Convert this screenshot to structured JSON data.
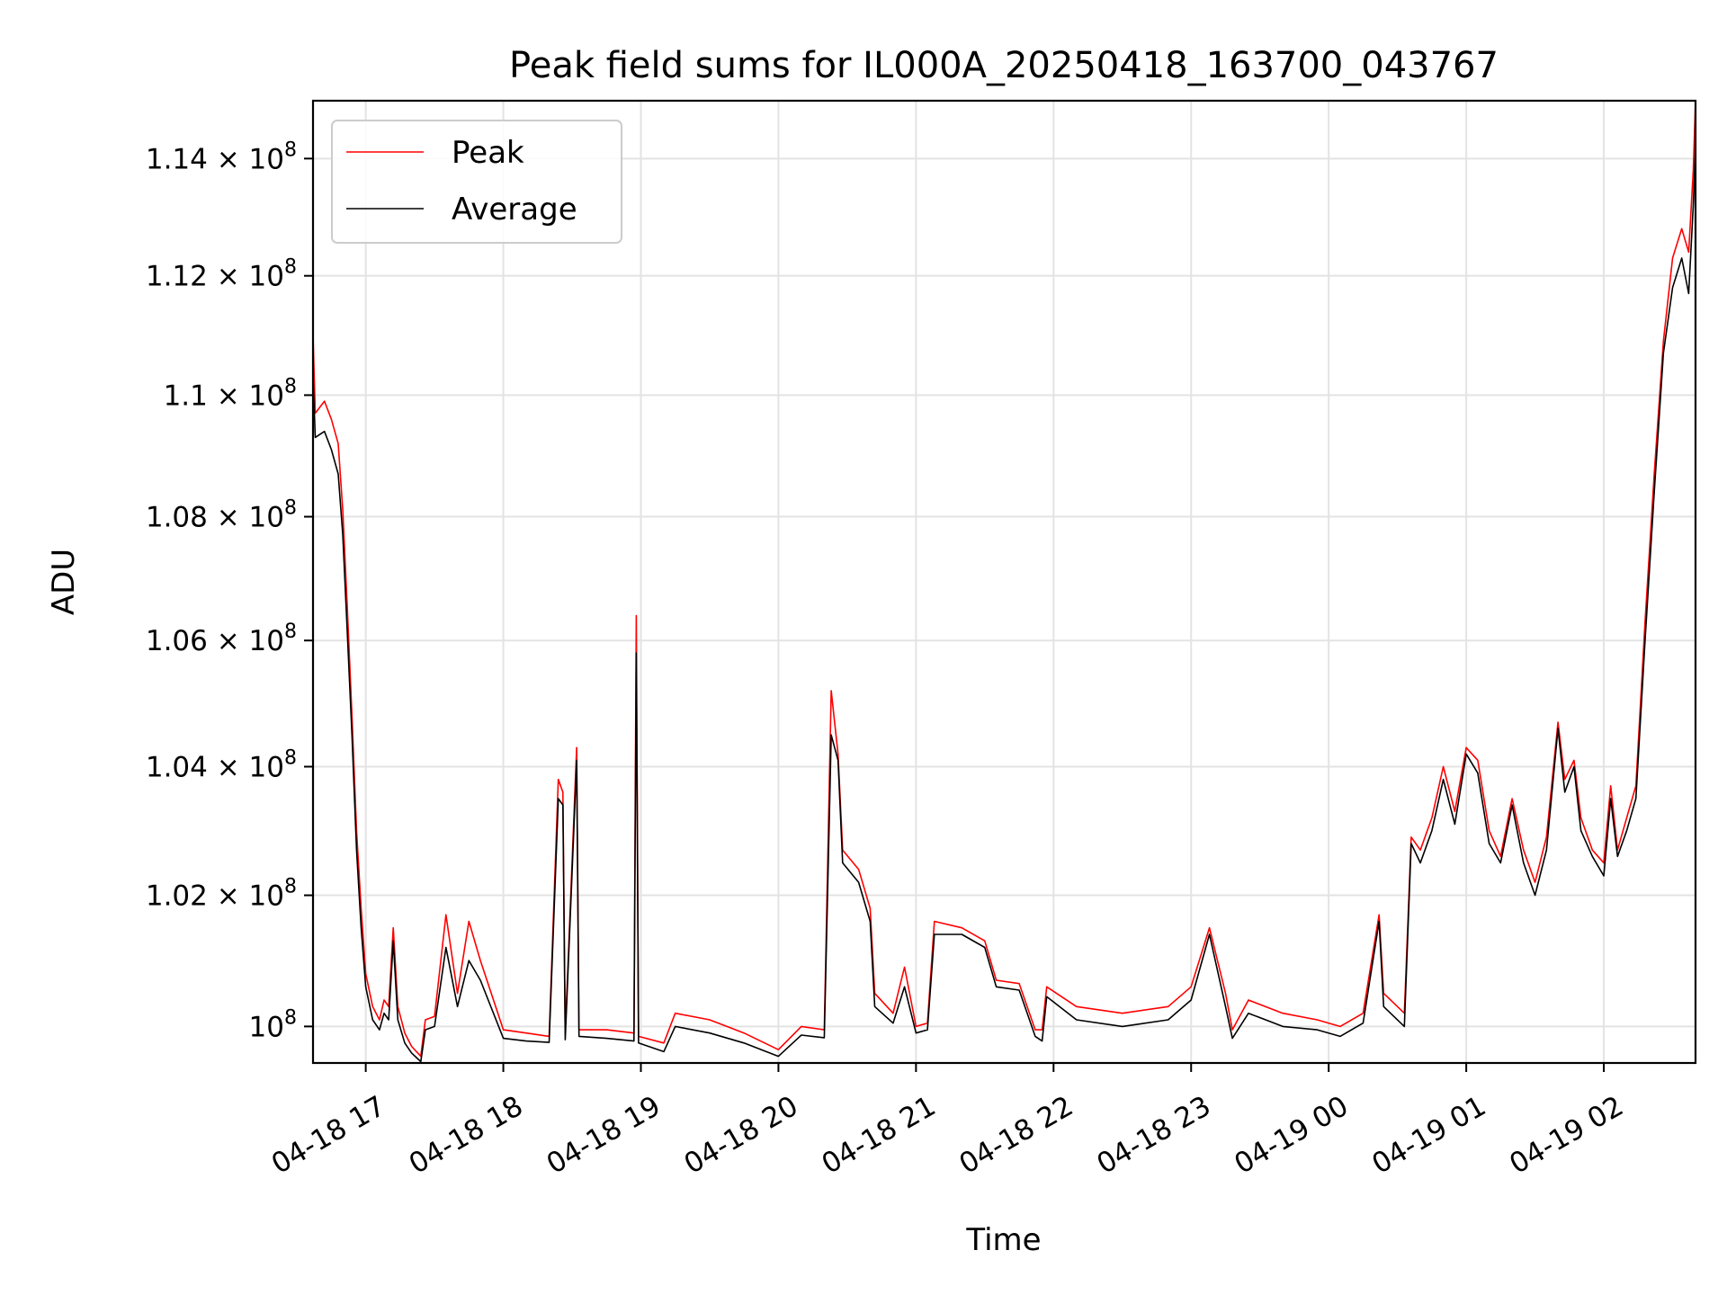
{
  "chart_data": {
    "type": "line",
    "title": "Peak field sums for IL000A_20250418_163700_043767",
    "xlabel": "Time",
    "ylabel": "ADU",
    "y_scale": "log",
    "xlim": [
      "2025-04-18 16:37",
      "2025-04-19 02:40"
    ],
    "ylim": [
      99450000,
      115000000
    ],
    "x_ticks": [
      {
        "t": "2025-04-18 17:00",
        "label": "04-18 17"
      },
      {
        "t": "2025-04-18 18:00",
        "label": "04-18 18"
      },
      {
        "t": "2025-04-18 19:00",
        "label": "04-18 19"
      },
      {
        "t": "2025-04-18 20:00",
        "label": "04-18 20"
      },
      {
        "t": "2025-04-18 21:00",
        "label": "04-18 21"
      },
      {
        "t": "2025-04-18 22:00",
        "label": "04-18 22"
      },
      {
        "t": "2025-04-18 23:00",
        "label": "04-18 23"
      },
      {
        "t": "2025-04-19 00:00",
        "label": "04-19 00"
      },
      {
        "t": "2025-04-19 01:00",
        "label": "04-19 01"
      },
      {
        "t": "2025-04-19 02:00",
        "label": "04-19 02"
      }
    ],
    "y_ticks": [
      {
        "value": 100000000,
        "mant": "",
        "exp": "8"
      },
      {
        "value": 102000000,
        "mant": "1.02",
        "exp": "8"
      },
      {
        "value": 104000000,
        "mant": "1.04",
        "exp": "8"
      },
      {
        "value": 106000000,
        "mant": "1.06",
        "exp": "8"
      },
      {
        "value": 108000000,
        "mant": "1.08",
        "exp": "8"
      },
      {
        "value": 110000000,
        "mant": "1.1",
        "exp": "8"
      },
      {
        "value": 112000000,
        "mant": "1.12",
        "exp": "8"
      },
      {
        "value": 114000000,
        "mant": "1.14",
        "exp": "8"
      }
    ],
    "grid": true,
    "legend_position": "top-left",
    "series": [
      {
        "name": "Peak",
        "color": "#ff0000",
        "points": [
          [
            "2025-04-18 16:37",
            111000000
          ],
          [
            "2025-04-18 16:38",
            109700000
          ],
          [
            "2025-04-18 16:42",
            109900000
          ],
          [
            "2025-04-18 16:45",
            109600000
          ],
          [
            "2025-04-18 16:48",
            109200000
          ],
          [
            "2025-04-18 16:50",
            108100000
          ],
          [
            "2025-04-18 16:52",
            106500000
          ],
          [
            "2025-04-18 16:54",
            104800000
          ],
          [
            "2025-04-18 16:56",
            103000000
          ],
          [
            "2025-04-18 16:58",
            101800000
          ],
          [
            "2025-04-18 17:00",
            100800000
          ],
          [
            "2025-04-18 17:03",
            100300000
          ],
          [
            "2025-04-18 17:06",
            100100000
          ],
          [
            "2025-04-18 17:08",
            100400000
          ],
          [
            "2025-04-18 17:10",
            100300000
          ],
          [
            "2025-04-18 17:12",
            101500000
          ],
          [
            "2025-04-18 17:14",
            100300000
          ],
          [
            "2025-04-18 17:17",
            99900000
          ],
          [
            "2025-04-18 17:20",
            99700000
          ],
          [
            "2025-04-18 17:24",
            99550000
          ],
          [
            "2025-04-18 17:26",
            100100000
          ],
          [
            "2025-04-18 17:30",
            100150000
          ],
          [
            "2025-04-18 17:35",
            101700000
          ],
          [
            "2025-04-18 17:40",
            100500000
          ],
          [
            "2025-04-18 17:45",
            101600000
          ],
          [
            "2025-04-18 17:50",
            101000000
          ],
          [
            "2025-04-18 18:00",
            99950000
          ],
          [
            "2025-04-18 18:10",
            99900000
          ],
          [
            "2025-04-18 18:20",
            99850000
          ],
          [
            "2025-04-18 18:24",
            103800000
          ],
          [
            "2025-04-18 18:26",
            103600000
          ],
          [
            "2025-04-18 18:27",
            99900000
          ],
          [
            "2025-04-18 18:32",
            104300000
          ],
          [
            "2025-04-18 18:33",
            99950000
          ],
          [
            "2025-04-18 18:45",
            99950000
          ],
          [
            "2025-04-18 18:57",
            99900000
          ],
          [
            "2025-04-18 18:58",
            106400000
          ],
          [
            "2025-04-18 18:59",
            99850000
          ],
          [
            "2025-04-18 19:10",
            99750000
          ],
          [
            "2025-04-18 19:15",
            100200000
          ],
          [
            "2025-04-18 19:30",
            100100000
          ],
          [
            "2025-04-18 19:45",
            99900000
          ],
          [
            "2025-04-18 20:00",
            99650000
          ],
          [
            "2025-04-18 20:10",
            100000000
          ],
          [
            "2025-04-18 20:20",
            99950000
          ],
          [
            "2025-04-18 20:23",
            105200000
          ],
          [
            "2025-04-18 20:26",
            104200000
          ],
          [
            "2025-04-18 20:28",
            102700000
          ],
          [
            "2025-04-18 20:35",
            102400000
          ],
          [
            "2025-04-18 20:40",
            101800000
          ],
          [
            "2025-04-18 20:42",
            100500000
          ],
          [
            "2025-04-18 20:50",
            100200000
          ],
          [
            "2025-04-18 20:55",
            100900000
          ],
          [
            "2025-04-18 21:00",
            100000000
          ],
          [
            "2025-04-18 21:05",
            100050000
          ],
          [
            "2025-04-18 21:08",
            101600000
          ],
          [
            "2025-04-18 21:20",
            101500000
          ],
          [
            "2025-04-18 21:30",
            101300000
          ],
          [
            "2025-04-18 21:35",
            100700000
          ],
          [
            "2025-04-18 21:45",
            100650000
          ],
          [
            "2025-04-18 21:52",
            99950000
          ],
          [
            "2025-04-18 21:55",
            99950000
          ],
          [
            "2025-04-18 21:57",
            100600000
          ],
          [
            "2025-04-18 22:10",
            100300000
          ],
          [
            "2025-04-18 22:30",
            100200000
          ],
          [
            "2025-04-18 22:50",
            100300000
          ],
          [
            "2025-04-18 23:00",
            100600000
          ],
          [
            "2025-04-18 23:08",
            101500000
          ],
          [
            "2025-04-18 23:15",
            100500000
          ],
          [
            "2025-04-18 23:18",
            99950000
          ],
          [
            "2025-04-18 23:25",
            100400000
          ],
          [
            "2025-04-18 23:40",
            100200000
          ],
          [
            "2025-04-18 23:55",
            100100000
          ],
          [
            "2025-04-19 00:05",
            100000000
          ],
          [
            "2025-04-19 00:15",
            100200000
          ],
          [
            "2025-04-19 00:22",
            101700000
          ],
          [
            "2025-04-19 00:24",
            100500000
          ],
          [
            "2025-04-19 00:33",
            100200000
          ],
          [
            "2025-04-19 00:36",
            102900000
          ],
          [
            "2025-04-19 00:40",
            102700000
          ],
          [
            "2025-04-19 00:45",
            103200000
          ],
          [
            "2025-04-19 00:50",
            104000000
          ],
          [
            "2025-04-19 00:55",
            103300000
          ],
          [
            "2025-04-19 01:00",
            104300000
          ],
          [
            "2025-04-19 01:05",
            104100000
          ],
          [
            "2025-04-19 01:10",
            103000000
          ],
          [
            "2025-04-19 01:15",
            102600000
          ],
          [
            "2025-04-19 01:20",
            103500000
          ],
          [
            "2025-04-19 01:25",
            102700000
          ],
          [
            "2025-04-19 01:30",
            102200000
          ],
          [
            "2025-04-19 01:35",
            102900000
          ],
          [
            "2025-04-19 01:40",
            104700000
          ],
          [
            "2025-04-19 01:43",
            103800000
          ],
          [
            "2025-04-19 01:47",
            104100000
          ],
          [
            "2025-04-19 01:50",
            103200000
          ],
          [
            "2025-04-19 01:55",
            102700000
          ],
          [
            "2025-04-19 02:00",
            102500000
          ],
          [
            "2025-04-19 02:03",
            103700000
          ],
          [
            "2025-04-19 02:06",
            102700000
          ],
          [
            "2025-04-19 02:10",
            103200000
          ],
          [
            "2025-04-19 02:14",
            103700000
          ],
          [
            "2025-04-19 02:18",
            106300000
          ],
          [
            "2025-04-19 02:22",
            108700000
          ],
          [
            "2025-04-19 02:26",
            110900000
          ],
          [
            "2025-04-19 02:30",
            112300000
          ],
          [
            "2025-04-19 02:34",
            112800000
          ],
          [
            "2025-04-19 02:37",
            112400000
          ],
          [
            "2025-04-19 02:39",
            113800000
          ],
          [
            "2025-04-19 02:40",
            115000000
          ]
        ]
      },
      {
        "name": "Average",
        "color": "#000000",
        "points": [
          [
            "2025-04-18 16:37",
            110300000
          ],
          [
            "2025-04-18 16:38",
            109300000
          ],
          [
            "2025-04-18 16:42",
            109400000
          ],
          [
            "2025-04-18 16:45",
            109100000
          ],
          [
            "2025-04-18 16:48",
            108700000
          ],
          [
            "2025-04-18 16:50",
            107700000
          ],
          [
            "2025-04-18 16:52",
            106100000
          ],
          [
            "2025-04-18 16:54",
            104500000
          ],
          [
            "2025-04-18 16:56",
            102700000
          ],
          [
            "2025-04-18 16:58",
            101500000
          ],
          [
            "2025-04-18 17:00",
            100600000
          ],
          [
            "2025-04-18 17:03",
            100100000
          ],
          [
            "2025-04-18 17:06",
            99950000
          ],
          [
            "2025-04-18 17:08",
            100200000
          ],
          [
            "2025-04-18 17:10",
            100100000
          ],
          [
            "2025-04-18 17:12",
            101300000
          ],
          [
            "2025-04-18 17:14",
            100100000
          ],
          [
            "2025-04-18 17:17",
            99750000
          ],
          [
            "2025-04-18 17:20",
            99600000
          ],
          [
            "2025-04-18 17:24",
            99470000
          ],
          [
            "2025-04-18 17:26",
            99950000
          ],
          [
            "2025-04-18 17:30",
            100000000
          ],
          [
            "2025-04-18 17:35",
            101200000
          ],
          [
            "2025-04-18 17:40",
            100300000
          ],
          [
            "2025-04-18 17:45",
            101000000
          ],
          [
            "2025-04-18 17:50",
            100700000
          ],
          [
            "2025-04-18 18:00",
            99820000
          ],
          [
            "2025-04-18 18:10",
            99780000
          ],
          [
            "2025-04-18 18:20",
            99760000
          ],
          [
            "2025-04-18 18:24",
            103500000
          ],
          [
            "2025-04-18 18:26",
            103400000
          ],
          [
            "2025-04-18 18:27",
            99800000
          ],
          [
            "2025-04-18 18:32",
            104100000
          ],
          [
            "2025-04-18 18:33",
            99850000
          ],
          [
            "2025-04-18 18:45",
            99820000
          ],
          [
            "2025-04-18 18:57",
            99780000
          ],
          [
            "2025-04-18 18:58",
            105800000
          ],
          [
            "2025-04-18 18:59",
            99750000
          ],
          [
            "2025-04-18 19:10",
            99620000
          ],
          [
            "2025-04-18 19:15",
            100000000
          ],
          [
            "2025-04-18 19:30",
            99900000
          ],
          [
            "2025-04-18 19:45",
            99750000
          ],
          [
            "2025-04-18 20:00",
            99550000
          ],
          [
            "2025-04-18 20:10",
            99870000
          ],
          [
            "2025-04-18 20:20",
            99830000
          ],
          [
            "2025-04-18 20:23",
            104500000
          ],
          [
            "2025-04-18 20:26",
            104100000
          ],
          [
            "2025-04-18 20:28",
            102500000
          ],
          [
            "2025-04-18 20:35",
            102200000
          ],
          [
            "2025-04-18 20:40",
            101600000
          ],
          [
            "2025-04-18 20:42",
            100300000
          ],
          [
            "2025-04-18 20:50",
            100050000
          ],
          [
            "2025-04-18 20:55",
            100600000
          ],
          [
            "2025-04-18 21:00",
            99900000
          ],
          [
            "2025-04-18 21:05",
            99950000
          ],
          [
            "2025-04-18 21:08",
            101400000
          ],
          [
            "2025-04-18 21:20",
            101400000
          ],
          [
            "2025-04-18 21:30",
            101200000
          ],
          [
            "2025-04-18 21:35",
            100600000
          ],
          [
            "2025-04-18 21:45",
            100550000
          ],
          [
            "2025-04-18 21:52",
            99850000
          ],
          [
            "2025-04-18 21:55",
            99780000
          ],
          [
            "2025-04-18 21:57",
            100450000
          ],
          [
            "2025-04-18 22:10",
            100100000
          ],
          [
            "2025-04-18 22:30",
            100000000
          ],
          [
            "2025-04-18 22:50",
            100100000
          ],
          [
            "2025-04-18 23:00",
            100400000
          ],
          [
            "2025-04-18 23:08",
            101400000
          ],
          [
            "2025-04-18 23:15",
            100300000
          ],
          [
            "2025-04-18 23:18",
            99820000
          ],
          [
            "2025-04-18 23:25",
            100200000
          ],
          [
            "2025-04-18 23:40",
            100000000
          ],
          [
            "2025-04-18 23:55",
            99950000
          ],
          [
            "2025-04-19 00:05",
            99850000
          ],
          [
            "2025-04-19 00:15",
            100050000
          ],
          [
            "2025-04-19 00:22",
            101600000
          ],
          [
            "2025-04-19 00:24",
            100300000
          ],
          [
            "2025-04-19 00:33",
            100000000
          ],
          [
            "2025-04-19 00:36",
            102800000
          ],
          [
            "2025-04-19 00:40",
            102500000
          ],
          [
            "2025-04-19 00:45",
            103000000
          ],
          [
            "2025-04-19 00:50",
            103800000
          ],
          [
            "2025-04-19 00:55",
            103100000
          ],
          [
            "2025-04-19 01:00",
            104200000
          ],
          [
            "2025-04-19 01:05",
            103900000
          ],
          [
            "2025-04-19 01:10",
            102800000
          ],
          [
            "2025-04-19 01:15",
            102500000
          ],
          [
            "2025-04-19 01:20",
            103400000
          ],
          [
            "2025-04-19 01:25",
            102500000
          ],
          [
            "2025-04-19 01:30",
            102000000
          ],
          [
            "2025-04-19 01:35",
            102700000
          ],
          [
            "2025-04-19 01:40",
            104600000
          ],
          [
            "2025-04-19 01:43",
            103600000
          ],
          [
            "2025-04-19 01:47",
            104000000
          ],
          [
            "2025-04-19 01:50",
            103000000
          ],
          [
            "2025-04-19 01:55",
            102600000
          ],
          [
            "2025-04-19 02:00",
            102300000
          ],
          [
            "2025-04-19 02:03",
            103500000
          ],
          [
            "2025-04-19 02:06",
            102600000
          ],
          [
            "2025-04-19 02:10",
            103000000
          ],
          [
            "2025-04-19 02:14",
            103500000
          ],
          [
            "2025-04-19 02:18",
            106000000
          ],
          [
            "2025-04-19 02:22",
            108400000
          ],
          [
            "2025-04-19 02:26",
            110700000
          ],
          [
            "2025-04-19 02:30",
            111800000
          ],
          [
            "2025-04-19 02:34",
            112300000
          ],
          [
            "2025-04-19 02:37",
            111700000
          ],
          [
            "2025-04-19 02:39",
            113200000
          ],
          [
            "2025-04-19 02:40",
            114200000
          ]
        ]
      }
    ]
  }
}
